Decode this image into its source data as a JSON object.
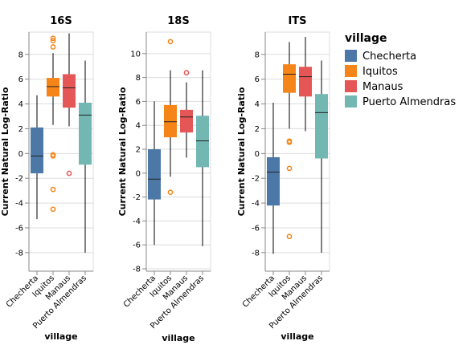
{
  "chart_data": {
    "type": "box",
    "x_title": "village",
    "y_title": "Current Natural Log-Ratio",
    "categories": [
      "Checherta",
      "Iquitos",
      "Manaus",
      "Puerto Almendras"
    ],
    "legend": {
      "title": "village",
      "position": "top-right",
      "items": [
        {
          "label": "Checherta",
          "color": "#4c78a8"
        },
        {
          "label": "Iquitos",
          "color": "#f58518"
        },
        {
          "label": "Manaus",
          "color": "#e45756"
        },
        {
          "label": "Puerto Almendras",
          "color": "#72b7b2"
        }
      ]
    },
    "grid": true,
    "panels": [
      {
        "title": "16S",
        "ylim": [
          -9.5,
          9.8
        ],
        "yticks": [
          -8,
          -6,
          -4,
          -2,
          0,
          2,
          4,
          6,
          8
        ],
        "boxes": [
          {
            "category": "Checherta",
            "min": -5.3,
            "q1": -1.6,
            "median": -0.2,
            "q3": 2.1,
            "max": 4.7,
            "outliers": []
          },
          {
            "category": "Iquitos",
            "min": 2.3,
            "q1": 4.6,
            "median": 5.4,
            "q3": 6.1,
            "max": 8.1,
            "outliers": [
              9.3,
              9.1,
              8.6,
              -0.1,
              -0.2,
              -2.9,
              -4.5
            ]
          },
          {
            "category": "Manaus",
            "min": 2.2,
            "q1": 3.7,
            "median": 5.3,
            "q3": 6.4,
            "max": 9.7,
            "outliers": [
              -1.6
            ]
          },
          {
            "category": "Puerto Almendras",
            "min": -8.0,
            "q1": -0.9,
            "median": 3.1,
            "q3": 4.1,
            "max": 7.5,
            "outliers": []
          }
        ]
      },
      {
        "title": "18S",
        "ylim": [
          -8.2,
          11.8
        ],
        "yticks": [
          -8,
          -6,
          -4,
          -2,
          0,
          2,
          4,
          6,
          8,
          10
        ],
        "boxes": [
          {
            "category": "Checherta",
            "min": -6.0,
            "q1": -2.2,
            "median": -0.5,
            "q3": 2.0,
            "max": 6.0,
            "outliers": []
          },
          {
            "category": "Iquitos",
            "min": -0.3,
            "q1": 3.0,
            "median": 4.3,
            "q3": 5.7,
            "max": 8.6,
            "outliers": [
              11.0,
              -1.6
            ]
          },
          {
            "category": "Manaus",
            "min": 1.3,
            "q1": 3.4,
            "median": 4.7,
            "q3": 5.3,
            "max": 7.6,
            "outliers": [
              8.4
            ]
          },
          {
            "category": "Puerto Almendras",
            "min": -6.1,
            "q1": 0.5,
            "median": 2.7,
            "q3": 4.8,
            "max": 8.6,
            "outliers": []
          }
        ]
      },
      {
        "title": "ITS",
        "ylim": [
          -9.5,
          9.8
        ],
        "yticks": [
          -8,
          -6,
          -4,
          -2,
          0,
          2,
          4,
          6,
          8
        ],
        "boxes": [
          {
            "category": "Checherta",
            "min": -8.1,
            "q1": -4.2,
            "median": -1.5,
            "q3": -0.3,
            "max": 4.1,
            "outliers": []
          },
          {
            "category": "Iquitos",
            "min": 2.0,
            "q1": 4.9,
            "median": 6.4,
            "q3": 7.2,
            "max": 9.0,
            "outliers": [
              1.0,
              0.9,
              -1.2,
              -6.7
            ]
          },
          {
            "category": "Manaus",
            "min": 1.8,
            "q1": 4.6,
            "median": 6.2,
            "q3": 7.0,
            "max": 9.4,
            "outliers": []
          },
          {
            "category": "Puerto Almendras",
            "min": -8.0,
            "q1": -0.4,
            "median": 3.3,
            "q3": 4.8,
            "max": 7.5,
            "outliers": []
          }
        ]
      }
    ]
  }
}
